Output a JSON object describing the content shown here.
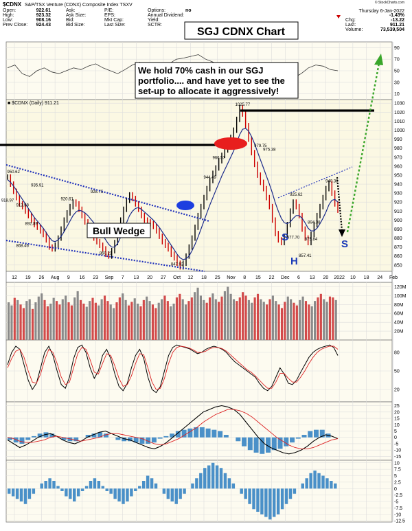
{
  "header": {
    "symbol": "$CDNX",
    "name": "S&P/TSX Venture (CDNX) Composite Index  TSXV",
    "date_line": "Thursday  6-Jan-2022",
    "rows": [
      [
        {
          "k": "Open:",
          "v": "922.61"
        },
        {
          "k": "Ask:",
          "v": ""
        },
        {
          "k": "P/E:",
          "v": ""
        },
        {
          "k": "Options:",
          "v": "no"
        }
      ],
      [
        {
          "k": "High:",
          "v": "923.32"
        },
        {
          "k": "Ask Size:",
          "v": ""
        },
        {
          "k": "EPS:",
          "v": ""
        },
        {
          "k": "Annual Dividend:",
          "v": ""
        }
      ],
      [
        {
          "k": "Low:",
          "v": "908.16"
        },
        {
          "k": "Bid:",
          "v": ""
        },
        {
          "k": "Mkt Cap:",
          "v": ""
        },
        {
          "k": "Yield:",
          "v": ""
        }
      ],
      [
        {
          "k": "Prev Close:",
          "v": "924.43"
        },
        {
          "k": "Bid Size:",
          "v": ""
        },
        {
          "k": "Last Size:",
          "v": ""
        },
        {
          "k": "SCTR:",
          "v": ""
        }
      ]
    ],
    "right": [
      {
        "k": "",
        "v": "-1.43%"
      },
      {
        "k": "Chg:",
        "v": "-13.22"
      },
      {
        "k": "Last:",
        "v": "911.21"
      },
      {
        "k": "Volume:",
        "v": "73,539,504"
      }
    ],
    "watermark": "© StockCharts.com"
  },
  "title_box": "SGJ CDNX Chart",
  "comment_box": [
    "We hold 70% cash in our SGJ",
    "portfolio.... and have yet to see the",
    "set-up to allocate it aggressively!"
  ],
  "price_label": "■ $CDNX (Daily) 911.21",
  "labels": {
    "bull_wedge": "Bull Wedge",
    "s1": "S",
    "h": "H",
    "s2": "S"
  },
  "chart_data": [
    {
      "type": "line",
      "panel": "rsi",
      "y_ticks": [
        90,
        70,
        50,
        30,
        10
      ],
      "ylim": [
        0,
        100
      ],
      "values": [
        55,
        60,
        45,
        40,
        50,
        55,
        48,
        45,
        50,
        55,
        52,
        58,
        62,
        55,
        50,
        45,
        52,
        60,
        65,
        58,
        55,
        60,
        62,
        70,
        72,
        75,
        78,
        70,
        65,
        60,
        55,
        50,
        45,
        40,
        35,
        40,
        45,
        48,
        42,
        38,
        45,
        55,
        60,
        58,
        52,
        50
      ]
    },
    {
      "type": "line",
      "panel": "price",
      "x_ticks": [
        "12",
        "19",
        "26",
        "Aug",
        "9",
        "16",
        "23",
        "Sep",
        "7",
        "13",
        "20",
        "27",
        "Oct",
        "12",
        "18",
        "25",
        "Nov",
        "8",
        "15",
        "22",
        "Dec",
        "6",
        "13",
        "20",
        "2022",
        "10",
        "18",
        "24",
        "Feb"
      ],
      "y_ticks": [
        1030,
        1020,
        1010,
        1000,
        990,
        980,
        970,
        960,
        950,
        940,
        930,
        920,
        910,
        900,
        890,
        880,
        870,
        860,
        850
      ],
      "ylim": [
        843,
        1034
      ],
      "price": [
        948,
        940,
        932,
        925,
        918,
        915,
        910,
        905,
        900,
        895,
        892,
        888,
        884,
        878,
        870,
        868,
        872,
        880,
        890,
        900,
        908,
        915,
        920,
        918,
        912,
        905,
        898,
        892,
        885,
        880,
        876,
        872,
        868,
        862,
        860,
        866,
        875,
        888,
        900,
        912,
        922,
        928,
        924,
        918,
        912,
        905,
        900,
        898,
        896,
        893,
        888,
        882,
        876,
        872,
        868,
        862,
        858,
        852,
        848,
        852,
        860,
        870,
        880,
        892,
        905,
        915,
        925,
        935,
        944,
        952,
        958,
        966,
        972,
        978,
        985,
        992,
        1000,
        1012,
        1025,
        1018,
        1005,
        990,
        975,
        962,
        950,
        942,
        935,
        925,
        915,
        900,
        885,
        878,
        875,
        882,
        895,
        910,
        920,
        915,
        905,
        890,
        880,
        875,
        884,
        895,
        905,
        915,
        925,
        935,
        941,
        930,
        918,
        911
      ],
      "ma": [
        945,
        942,
        938,
        933,
        928,
        923,
        918,
        913,
        908,
        903,
        899,
        895,
        891,
        886,
        881,
        877,
        876,
        878,
        882,
        887,
        893,
        899,
        905,
        909,
        911,
        910,
        908,
        905,
        901,
        897,
        892,
        888,
        883,
        878,
        873,
        870,
        870,
        874,
        881,
        889,
        897,
        905,
        910,
        913,
        914,
        912,
        909,
        906,
        903,
        900,
        896,
        892,
        887,
        882,
        877,
        872,
        867,
        862,
        858,
        856,
        857,
        860,
        866,
        873,
        881,
        890,
        899,
        908,
        917,
        925,
        933,
        941,
        949,
        956,
        963,
        970,
        977,
        986,
        995,
        1001,
        1002,
        999,
        993,
        985,
        976,
        967,
        958,
        949,
        940,
        930,
        919,
        910,
        902,
        897,
        896,
        898,
        902,
        905,
        905,
        902,
        897,
        891,
        888,
        888,
        891,
        896,
        902,
        909,
        917,
        922,
        923,
        920
      ],
      "annotations": [
        {
          "x": 2,
          "y": 950.62,
          "t": "950.62"
        },
        {
          "x": 10,
          "y": 935.91,
          "t": "935.91"
        },
        {
          "x": 0,
          "y": 918.97,
          "t": "918.97"
        },
        {
          "x": 5,
          "y": 913.58,
          "t": "913.58"
        },
        {
          "x": 8,
          "y": 892.89,
          "t": "892.89"
        },
        {
          "x": 5,
          "y": 868.46,
          "t": "868.46"
        },
        {
          "x": 20,
          "y": 920.61,
          "t": "920.61"
        },
        {
          "x": 30,
          "y": 928.75,
          "t": "928.75"
        },
        {
          "x": 33,
          "y": 860.21,
          "t": "860.21"
        },
        {
          "x": 57,
          "y": 847.92,
          "t": "847.92"
        },
        {
          "x": 68,
          "y": 944.49,
          "t": "944.49"
        },
        {
          "x": 71,
          "y": 966.57,
          "t": "966.57"
        },
        {
          "x": 79,
          "y": 1025.77,
          "t": "1025.77"
        },
        {
          "x": 85,
          "y": 979.75,
          "t": "979.75"
        },
        {
          "x": 88,
          "y": 975.38,
          "t": "975.38"
        },
        {
          "x": 97,
          "y": 925.62,
          "t": "925.62"
        },
        {
          "x": 96,
          "y": 877.7,
          "t": "877.70"
        },
        {
          "x": 103,
          "y": 894.38,
          "t": "894.38"
        },
        {
          "x": 102,
          "y": 875.84,
          "t": "875.84"
        },
        {
          "x": 100,
          "y": 857.41,
          "t": "857.41"
        },
        {
          "x": 109,
          "y": 940.38,
          "t": "940.38"
        }
      ]
    },
    {
      "type": "bar",
      "panel": "volume",
      "y_ticks": [
        "120M",
        "100M",
        "80M",
        "60M",
        "40M",
        "20M"
      ],
      "ylim": [
        0,
        130
      ],
      "values": [
        85,
        78,
        95,
        90,
        80,
        72,
        88,
        92,
        70,
        85,
        98,
        105,
        90,
        76,
        82,
        95,
        88,
        80,
        92,
        100,
        85,
        78,
        96,
        110,
        90,
        82,
        75,
        88,
        95,
        84,
        78,
        92,
        100,
        88,
        80,
        72,
        85,
        96,
        105,
        90,
        78,
        86,
        94,
        82,
        76,
        90,
        98,
        88,
        80,
        72,
        84,
        92,
        100,
        88,
        76,
        82,
        96,
        104,
        92,
        80,
        88,
        96,
        108,
        118,
        100,
        90,
        84,
        96,
        105,
        92,
        86,
        98,
        110,
        120,
        104,
        92,
        88,
        96,
        108,
        100,
        90,
        84,
        96,
        104,
        92,
        86,
        80,
        92,
        100,
        88,
        80,
        72,
        86,
        98,
        92,
        84,
        78,
        90,
        98,
        88,
        80,
        76,
        88,
        96,
        104,
        92,
        86,
        98,
        96,
        90
      ],
      "up_down": "UUDUDDUUDUUUDDUUDDUUDDUUDDUUDDUUDDUUDDUUDDUUDDUUDDUUDDUUDDUUDDUUUUDDUUDDUUUUDDDDUUDDUUDDUUDDDUUDDUUDDUUDDUUDDUUD"
    },
    {
      "type": "line",
      "panel": "stochastic",
      "y_ticks": [
        80,
        50,
        20
      ],
      "ylim": [
        0,
        100
      ],
      "k": [
        60,
        80,
        90,
        85,
        60,
        35,
        20,
        30,
        55,
        80,
        90,
        75,
        50,
        28,
        22,
        40,
        70,
        88,
        92,
        80,
        55,
        38,
        50,
        75,
        85,
        70,
        45,
        25,
        18,
        30,
        55,
        75,
        85,
        70,
        40,
        20,
        15,
        25,
        50,
        75,
        88,
        92,
        90,
        88,
        86,
        82,
        78,
        80,
        85,
        88,
        90,
        88,
        85,
        80,
        72,
        65,
        60,
        55,
        50,
        45,
        40,
        30,
        22,
        18,
        25,
        40,
        55,
        45,
        30,
        28,
        35,
        48,
        60,
        72,
        80,
        85,
        88,
        90,
        92,
        88,
        75
      ],
      "d": [
        55,
        70,
        82,
        85,
        72,
        50,
        32,
        30,
        45,
        68,
        85,
        80,
        62,
        40,
        28,
        32,
        55,
        78,
        88,
        85,
        68,
        48,
        45,
        62,
        78,
        75,
        58,
        38,
        25,
        28,
        42,
        62,
        78,
        76,
        55,
        32,
        20,
        22,
        38,
        62,
        80,
        88,
        90,
        89,
        87,
        84,
        80,
        80,
        82,
        86,
        88,
        88,
        86,
        82,
        76,
        70,
        64,
        58,
        52,
        48,
        42,
        35,
        28,
        22,
        22,
        32,
        46,
        46,
        38,
        32,
        32,
        40,
        50,
        62,
        72,
        80,
        85,
        88,
        90,
        90,
        85
      ]
    },
    {
      "type": "line",
      "panel": "macd",
      "y_ticks": [
        25,
        20,
        15,
        10,
        5,
        0,
        -5,
        -10,
        -15
      ],
      "ylim": [
        -18,
        28
      ],
      "macd": [
        -2,
        -5,
        -8,
        -6,
        -3,
        0,
        2,
        3,
        1,
        -2,
        -4,
        -5,
        -3,
        0,
        2,
        4,
        5,
        3,
        1,
        -1,
        -2,
        -4,
        -6,
        -8,
        -9,
        -7,
        -4,
        0,
        4,
        8,
        12,
        16,
        20,
        22,
        24,
        25,
        24,
        22,
        18,
        12,
        6,
        0,
        -5,
        -8,
        -10,
        -12,
        -13,
        -12,
        -10,
        -7,
        -3,
        0,
        2,
        1,
        -1
      ],
      "signal": [
        0,
        -1,
        -3,
        -4,
        -4,
        -3,
        -2,
        0,
        1,
        0,
        -1,
        -2,
        -3,
        -2,
        -1,
        0,
        2,
        3,
        3,
        2,
        1,
        0,
        -1,
        -3,
        -5,
        -6,
        -5,
        -3,
        -1,
        2,
        5,
        8,
        12,
        15,
        18,
        20,
        22,
        22,
        21,
        19,
        16,
        12,
        8,
        4,
        0,
        -3,
        -6,
        -8,
        -9,
        -9,
        -8,
        -6,
        -4,
        -2,
        -1
      ],
      "hist": [
        -2,
        -4,
        -5,
        -2,
        1,
        3,
        4,
        3,
        0,
        -2,
        -3,
        -3,
        0,
        2,
        3,
        4,
        3,
        0,
        -2,
        -3,
        -3,
        -4,
        -5,
        -5,
        -4,
        -1,
        1,
        3,
        5,
        6,
        7,
        8,
        8,
        7,
        6,
        5,
        2,
        0,
        -3,
        -7,
        -10,
        -12,
        -13,
        -12,
        -10,
        -9,
        -7,
        -4,
        -1,
        2,
        5,
        6,
        6,
        3,
        0
      ]
    },
    {
      "type": "bar",
      "panel": "macd_histogram",
      "y_ticks": [
        10,
        7.5,
        5,
        2.5,
        0,
        -2.5,
        -5,
        -7.5,
        -10,
        -12.5
      ],
      "ylim": [
        -13,
        11
      ],
      "values": [
        -2,
        -3,
        -4,
        -5,
        -6,
        -4,
        -2,
        0,
        2,
        3,
        4,
        3,
        1,
        -1,
        -3,
        -4,
        -5,
        -3,
        -1,
        1,
        3,
        4,
        3,
        1,
        -1,
        -2,
        -4,
        -5,
        -6,
        -5,
        -3,
        -1,
        1,
        3,
        5,
        4,
        2,
        0,
        -2,
        -4,
        -5,
        -6,
        -4,
        -2,
        0,
        2,
        4,
        6,
        8,
        9,
        10,
        9,
        8,
        6,
        4,
        2,
        0,
        -2,
        -4,
        -6,
        -8,
        -9,
        -10,
        -11,
        -12,
        -11,
        -10,
        -8,
        -6,
        -4,
        -2,
        0,
        2,
        4,
        6,
        7,
        6,
        5,
        4,
        3,
        2
      ]
    }
  ]
}
